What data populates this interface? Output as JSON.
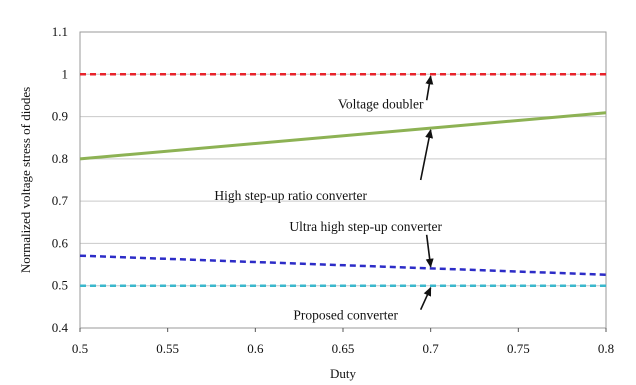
{
  "chart_data": {
    "type": "line",
    "xlabel": "Duty",
    "ylabel": "Normalized voltage stress of diodes",
    "xlim": [
      0.5,
      0.8
    ],
    "ylim": [
      0.4,
      1.1
    ],
    "xticks": [
      "0.5",
      "0.55",
      "0.6",
      "0.65",
      "0.7",
      "0.75",
      "0.8"
    ],
    "yticks": [
      "0.4",
      "0.5",
      "0.6",
      "0.7",
      "0.8",
      "0.9",
      "1",
      "1.1"
    ],
    "grid": "horizontal",
    "legend": "none",
    "series": [
      {
        "name": "Voltage doubler",
        "x": [
          0.5,
          0.8
        ],
        "y": [
          1.0,
          1.0
        ],
        "color": "#e8232b",
        "style": "dashed"
      },
      {
        "name": "High step-up ratio converter",
        "x": [
          0.5,
          0.8
        ],
        "y": [
          0.8,
          0.909
        ],
        "color": "#8db254",
        "style": "solid"
      },
      {
        "name": "Ultra high step-up converter",
        "x": [
          0.5,
          0.8
        ],
        "y": [
          0.571,
          0.526
        ],
        "color": "#2c2cc7",
        "style": "dashed"
      },
      {
        "name": "Proposed converter",
        "x": [
          0.5,
          0.8
        ],
        "y": [
          0.5,
          0.5
        ],
        "color": "#3ab7cc",
        "style": "dashed"
      }
    ],
    "annotations": [
      {
        "text": "Voltage doubler",
        "x": 0.7,
        "y": 1.0
      },
      {
        "text": "High step-up ratio converter",
        "x": 0.7,
        "y": 0.873
      },
      {
        "text": "Ultra high step-up converter",
        "x": 0.7,
        "y": 0.54
      },
      {
        "text": "Proposed converter",
        "x": 0.7,
        "y": 0.5
      }
    ]
  }
}
